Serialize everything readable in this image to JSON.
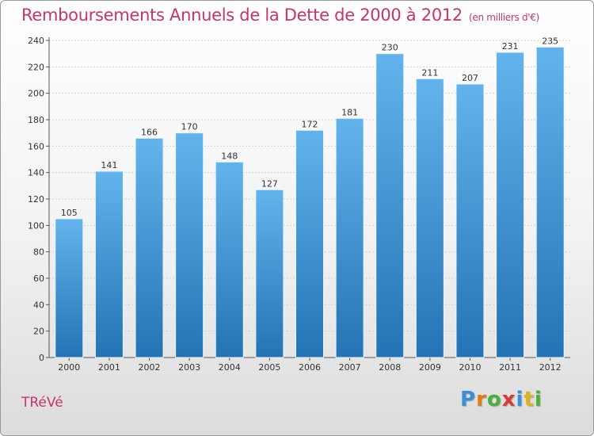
{
  "chart_data": {
    "type": "bar",
    "title": "Remboursements Annuels de la Dette de 2000 à 2012",
    "subtitle": "(en milliers d'€)",
    "categories": [
      "2000",
      "2001",
      "2002",
      "2003",
      "2004",
      "2005",
      "2006",
      "2007",
      "2008",
      "2009",
      "2010",
      "2011",
      "2012"
    ],
    "values": [
      105,
      141,
      166,
      170,
      148,
      127,
      172,
      181,
      230,
      211,
      207,
      231,
      235
    ],
    "ylim": [
      0,
      240
    ],
    "yticks": [
      0,
      20,
      40,
      60,
      80,
      100,
      120,
      140,
      160,
      180,
      200,
      220,
      240
    ],
    "grid": true,
    "bar_color": "#3d95d8"
  },
  "footer": {
    "commune": "TRéVé",
    "logo_letters": [
      {
        "ch": "P",
        "color": "#3b8fd6"
      },
      {
        "ch": "r",
        "color": "#e07a1a"
      },
      {
        "ch": "o",
        "color": "#4caf3c"
      },
      {
        "ch": "x",
        "color": "#d63a3a"
      },
      {
        "ch": "i",
        "color": "#3b8fd6"
      },
      {
        "ch": "t",
        "color": "#e0b21a"
      },
      {
        "ch": "i",
        "color": "#4caf3c"
      }
    ]
  }
}
